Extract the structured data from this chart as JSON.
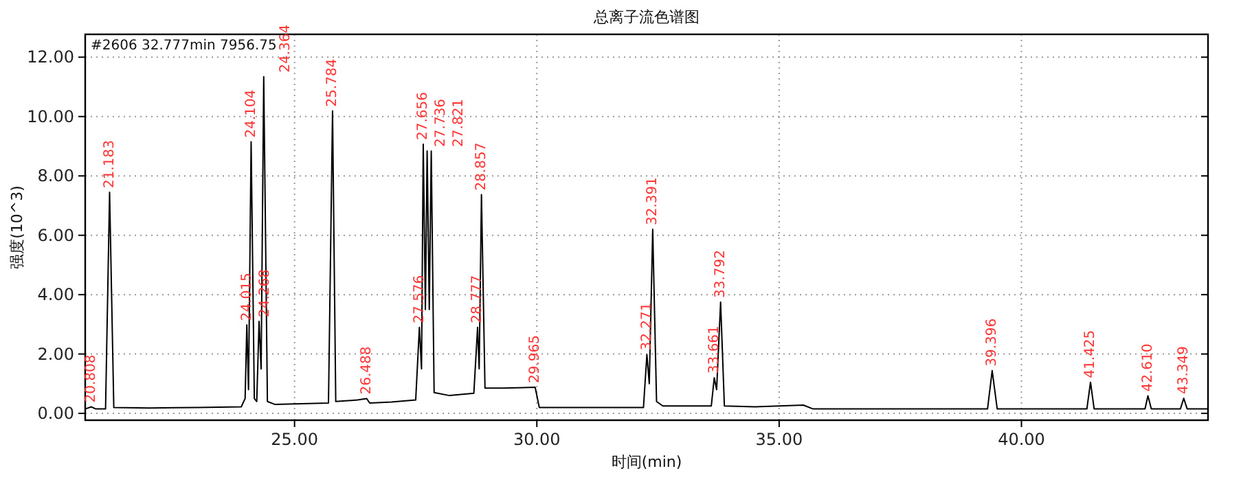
{
  "chart_data": {
    "type": "line",
    "title": "总离子流色谱图",
    "xlabel": "时间(min)",
    "ylabel": "强度(10^3)",
    "xlim": [
      20.68,
      43.85
    ],
    "ylim": [
      -0.23,
      12.77
    ],
    "xticks": [
      {
        "value": 25,
        "label": "25.00"
      },
      {
        "value": 30,
        "label": "30.00"
      },
      {
        "value": 35,
        "label": "35.00"
      },
      {
        "value": 40,
        "label": "40.00"
      }
    ],
    "yticks": [
      {
        "value": 0,
        "label": "0.00"
      },
      {
        "value": 2,
        "label": "2.00"
      },
      {
        "value": 4,
        "label": "4.00"
      },
      {
        "value": 6,
        "label": "6.00"
      },
      {
        "value": 8,
        "label": "8.00"
      },
      {
        "value": 10,
        "label": "10.00"
      },
      {
        "value": 12,
        "label": "12.00"
      }
    ],
    "grid": true,
    "series": [
      {
        "color": "#000000",
        "x": [
          20.68,
          20.808,
          20.9,
          21.1,
          21.183,
          21.27,
          22.0,
          23.0,
          23.9,
          23.98,
          24.015,
          24.05,
          24.104,
          24.17,
          24.22,
          24.268,
          24.31,
          24.364,
          24.44,
          24.6,
          25.0,
          25.7,
          25.784,
          25.85,
          26.3,
          26.488,
          26.55,
          27.0,
          27.5,
          27.576,
          27.62,
          27.656,
          27.7,
          27.736,
          27.78,
          27.821,
          27.88,
          28.2,
          28.7,
          28.777,
          28.81,
          28.857,
          28.93,
          29.3,
          29.965,
          30.05,
          31.0,
          32.2,
          32.271,
          32.32,
          32.391,
          32.47,
          32.6,
          33.6,
          33.661,
          33.71,
          33.792,
          33.87,
          34.5,
          35.5,
          35.7,
          39.3,
          39.396,
          39.5,
          41.35,
          41.425,
          41.5,
          42.55,
          42.61,
          42.68,
          43.28,
          43.349,
          43.42,
          43.85
        ],
        "values": [
          0.15,
          0.22,
          0.15,
          0.15,
          7.45,
          0.2,
          0.18,
          0.2,
          0.22,
          0.5,
          2.98,
          0.8,
          9.15,
          0.5,
          0.4,
          3.1,
          1.5,
          11.34,
          0.4,
          0.3,
          0.32,
          0.35,
          10.19,
          0.4,
          0.45,
          0.5,
          0.35,
          0.38,
          0.45,
          2.9,
          1.5,
          9.07,
          3.5,
          8.84,
          3.5,
          8.84,
          0.7,
          0.6,
          0.68,
          2.9,
          1.5,
          7.37,
          0.85,
          0.85,
          0.88,
          0.2,
          0.2,
          0.2,
          1.98,
          1.0,
          6.2,
          0.4,
          0.25,
          0.25,
          1.2,
          0.8,
          3.75,
          0.25,
          0.22,
          0.28,
          0.15,
          0.15,
          1.44,
          0.15,
          0.15,
          1.05,
          0.15,
          0.15,
          0.59,
          0.15,
          0.15,
          0.51,
          0.15,
          0.15
        ]
      }
    ],
    "annotations": [
      "#2606  32.777min  7956.75",
      {
        "text": "20.808",
        "x": 20.808,
        "y": 0.22
      },
      {
        "text": "21.183",
        "x": 21.183,
        "y": 7.45
      },
      {
        "text": "24.015",
        "x": 24.015,
        "y": 2.98
      },
      {
        "text": "24.104",
        "x": 24.104,
        "y": 9.15
      },
      {
        "text": "24.268",
        "x": 24.268,
        "y": 3.1
      },
      {
        "text": "24.364",
        "x": 24.364,
        "y": 11.34
      },
      {
        "text": "25.784",
        "x": 25.784,
        "y": 10.19
      },
      {
        "text": "26.488",
        "x": 26.488,
        "y": 0.5
      },
      {
        "text": "27.576",
        "x": 27.576,
        "y": 2.9
      },
      {
        "text": "27.656",
        "x": 27.656,
        "y": 9.07
      },
      {
        "text": "27.736",
        "x": 27.736,
        "y": 8.84
      },
      {
        "text": "27.821",
        "x": 27.821,
        "y": 8.84
      },
      {
        "text": "28.777",
        "x": 28.777,
        "y": 2.9
      },
      {
        "text": "28.857",
        "x": 28.857,
        "y": 7.37
      },
      {
        "text": "29.965",
        "x": 29.965,
        "y": 0.88
      },
      {
        "text": "32.271",
        "x": 32.271,
        "y": 1.98
      },
      {
        "text": "32.391",
        "x": 32.391,
        "y": 6.2
      },
      {
        "text": "33.661",
        "x": 33.661,
        "y": 1.2
      },
      {
        "text": "33.792",
        "x": 33.792,
        "y": 3.75
      },
      {
        "text": "39.396",
        "x": 39.396,
        "y": 1.44
      },
      {
        "text": "41.425",
        "x": 41.425,
        "y": 1.05
      },
      {
        "text": "42.610",
        "x": 42.61,
        "y": 0.59
      },
      {
        "text": "43.349",
        "x": 43.349,
        "y": 0.51
      }
    ]
  }
}
